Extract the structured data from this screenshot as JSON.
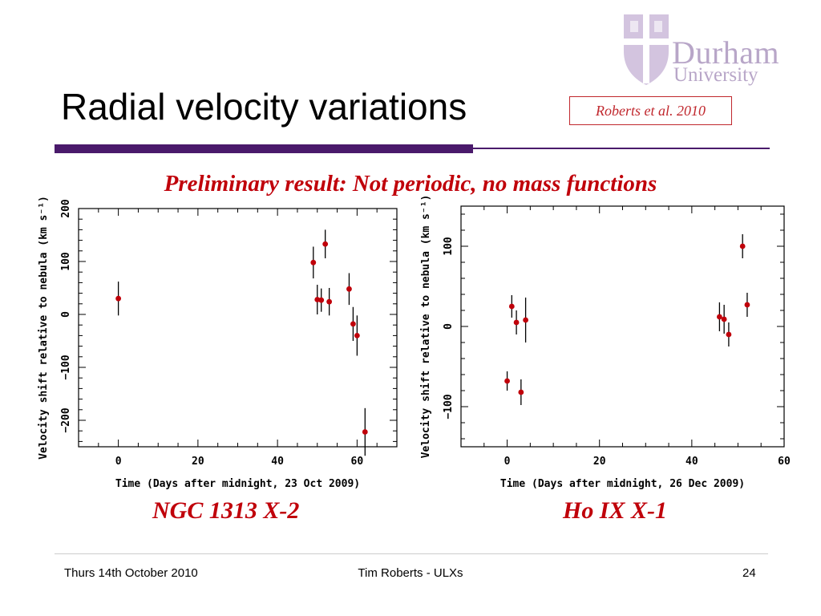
{
  "slide": {
    "title": "Radial velocity variations",
    "citation": "Roberts et al. 2010",
    "subtitle": "Preliminary result: Not periodic, no mass functions",
    "logo": {
      "line1": "Durham",
      "line2": "University",
      "color": "#b8a6c8"
    },
    "accent_color": "#4a1a6b",
    "red_color": "#c0000a"
  },
  "footer": {
    "date": "Thurs 14th October 2010",
    "author": "Tim Roberts - ULXs",
    "page": "24"
  },
  "chart_data": [
    {
      "type": "scatter",
      "label": "NGC 1313 X-2",
      "xlabel": "Time (Days after midnight, 23 Oct 2009)",
      "ylabel": "Velocity shift relative to nebula (km s⁻¹)",
      "xlim": [
        -10,
        70
      ],
      "ylim": [
        -250,
        200
      ],
      "xticks": [
        0,
        20,
        40,
        60
      ],
      "yticks": [
        -200,
        -100,
        0,
        100,
        200
      ],
      "points": [
        {
          "x": 0,
          "y": 30,
          "err": 32
        },
        {
          "x": 49,
          "y": 98,
          "err": 30
        },
        {
          "x": 50,
          "y": 28,
          "err": 28
        },
        {
          "x": 51,
          "y": 27,
          "err": 22
        },
        {
          "x": 52,
          "y": 133,
          "err": 27
        },
        {
          "x": 53,
          "y": 24,
          "err": 26
        },
        {
          "x": 58,
          "y": 48,
          "err": 30
        },
        {
          "x": 59,
          "y": -18,
          "err": 32
        },
        {
          "x": 60,
          "y": -40,
          "err": 38
        },
        {
          "x": 62,
          "y": -222,
          "err": 45
        }
      ]
    },
    {
      "type": "scatter",
      "label": "Ho IX X-1",
      "xlabel": "Time (Days after midnight, 26 Dec 2009)",
      "ylabel": "Velocity shift relative to nebula (km s⁻¹)",
      "xlim": [
        -10,
        60
      ],
      "ylim": [
        -150,
        150
      ],
      "xticks": [
        0,
        20,
        40,
        60
      ],
      "yticks": [
        -100,
        0,
        100
      ],
      "points": [
        {
          "x": 0,
          "y": -68,
          "err": 12
        },
        {
          "x": 1,
          "y": 25,
          "err": 14
        },
        {
          "x": 2,
          "y": 5,
          "err": 15
        },
        {
          "x": 3,
          "y": -82,
          "err": 16
        },
        {
          "x": 4,
          "y": 8,
          "err": 28
        },
        {
          "x": 46,
          "y": 12,
          "err": 18
        },
        {
          "x": 47,
          "y": 9,
          "err": 18
        },
        {
          "x": 48,
          "y": -10,
          "err": 15
        },
        {
          "x": 51,
          "y": 100,
          "err": 15
        },
        {
          "x": 52,
          "y": 27,
          "err": 15
        }
      ]
    }
  ]
}
